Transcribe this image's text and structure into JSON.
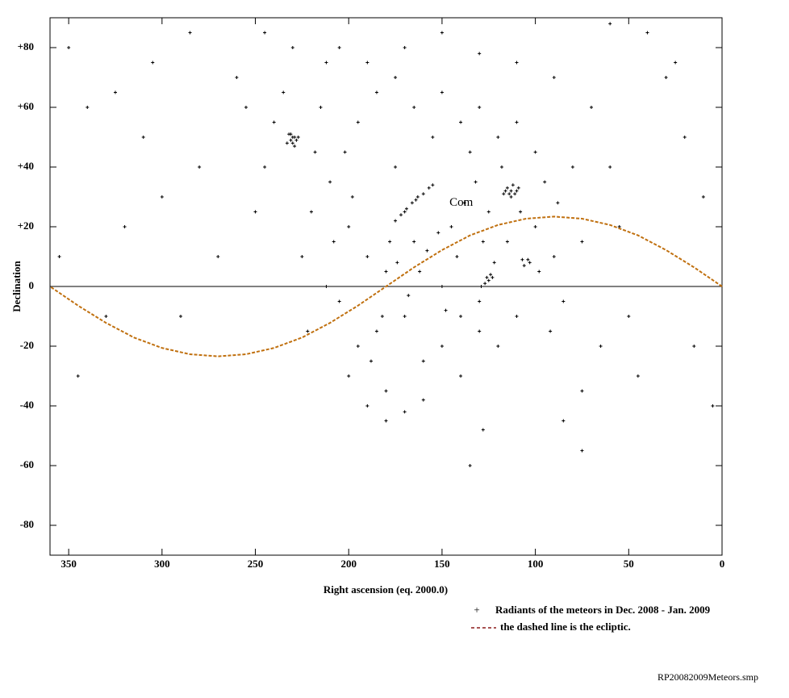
{
  "chart_data": {
    "type": "scatter",
    "x_label": "Right ascension (eq. 2000.0)",
    "y_label": "Declination",
    "xlim": [
      360,
      0
    ],
    "ylim": [
      -90,
      90
    ],
    "xticks": [
      350,
      300,
      250,
      200,
      150,
      100,
      50,
      0
    ],
    "yticks": [
      {
        "value": 80,
        "label": "+80"
      },
      {
        "value": 60,
        "label": "+60"
      },
      {
        "value": 40,
        "label": "+40"
      },
      {
        "value": 20,
        "label": "+20"
      },
      0,
      -20,
      -40,
      -60,
      -80
    ],
    "series": [
      {
        "name": "Radiants of the meteors in Dec. 2008 - Jan. 2009",
        "type": "scatter",
        "color": "#000000",
        "legend_symbol": "+",
        "x": [
          231,
          229,
          230,
          232,
          228,
          230,
          233,
          227,
          231,
          229,
          113,
          115,
          111,
          114,
          112,
          110,
          116,
          113,
          109,
          117,
          175,
          172,
          169,
          166,
          163,
          160,
          157,
          155,
          170,
          164,
          127,
          125,
          123,
          129,
          124,
          126,
          106,
          104,
          103,
          107,
          200,
          190,
          185,
          180,
          175,
          170,
          165,
          160,
          155,
          150,
          145,
          140,
          135,
          130,
          125,
          120,
          115,
          110,
          100,
          95,
          90,
          85,
          80,
          75,
          210,
          205,
          215,
          220,
          225,
          195,
          185,
          175,
          165,
          150,
          140,
          130,
          120,
          110,
          100,
          200,
          190,
          180,
          170,
          160,
          150,
          140,
          130,
          195,
          188,
          182,
          178,
          174,
          168,
          162,
          158,
          152,
          148,
          142,
          138,
          132,
          128,
          122,
          118,
          108,
          98,
          92,
          88,
          198,
          202,
          208,
          212,
          218,
          222,
          235,
          240,
          245,
          250,
          255,
          260,
          212,
          205,
          190,
          170,
          150,
          130,
          110,
          90,
          70,
          60,
          55,
          50,
          45,
          65,
          75,
          85,
          128,
          180,
          270,
          280,
          290,
          300,
          310,
          320,
          330,
          340,
          350,
          355,
          345,
          325,
          305,
          285,
          245,
          230,
          30,
          20,
          10,
          5,
          15,
          25,
          40,
          60,
          75,
          135
        ],
        "y": [
          49,
          50,
          48,
          51,
          49,
          50,
          48,
          50,
          51,
          47,
          32,
          33,
          31,
          31,
          34,
          32,
          32,
          30,
          33,
          31,
          22,
          24,
          26,
          28,
          30,
          31,
          33,
          34,
          25,
          29,
          1,
          2,
          3,
          0,
          4,
          3,
          7,
          9,
          8,
          9,
          20,
          10,
          -15,
          5,
          40,
          -10,
          15,
          -25,
          50,
          0,
          20,
          -30,
          45,
          -5,
          25,
          -20,
          15,
          -10,
          20,
          35,
          10,
          -5,
          40,
          15,
          35,
          -5,
          60,
          25,
          10,
          55,
          65,
          70,
          60,
          65,
          55,
          60,
          50,
          55,
          45,
          -30,
          -40,
          -35,
          -42,
          -38,
          -20,
          -10,
          -15,
          -20,
          -25,
          -10,
          15,
          8,
          -3,
          5,
          12,
          18,
          -8,
          10,
          28,
          35,
          15,
          8,
          40,
          25,
          5,
          -15,
          28,
          30,
          45,
          15,
          0,
          45,
          -15,
          65,
          55,
          40,
          25,
          60,
          70,
          75,
          80,
          75,
          80,
          85,
          78,
          75,
          70,
          60,
          40,
          20,
          -10,
          -30,
          -20,
          -35,
          -45,
          -48,
          -45,
          10,
          40,
          -10,
          30,
          50,
          20,
          -10,
          60,
          80,
          10,
          -30,
          65,
          75,
          85,
          85,
          80,
          70,
          50,
          30,
          -40,
          -20,
          75,
          85,
          88,
          -55,
          -60
        ]
      },
      {
        "name": "the dashed line is the ecliptic.",
        "type": "line",
        "style": "dashed",
        "color": "#c0700f",
        "legend_color": "#8b1a1a",
        "x": [
          0,
          15,
          30,
          45,
          60,
          75,
          90,
          105,
          120,
          135,
          150,
          165,
          180,
          195,
          210,
          225,
          240,
          255,
          270,
          285,
          300,
          315,
          330,
          345,
          360
        ],
        "y": [
          0,
          6.4,
          12.2,
          17.1,
          20.6,
          22.7,
          23.4,
          22.7,
          20.6,
          17.1,
          12.2,
          6.4,
          0,
          -6.4,
          -12.2,
          -17.1,
          -20.6,
          -22.7,
          -23.4,
          -22.7,
          -20.6,
          -17.1,
          -12.2,
          -6.4,
          0
        ]
      }
    ],
    "annotations": [
      {
        "text": "Com",
        "x": 146,
        "y": 28,
        "color": "#c0306a"
      }
    ],
    "zero_line": true,
    "footer": "RP20082009Meteors.smp"
  }
}
